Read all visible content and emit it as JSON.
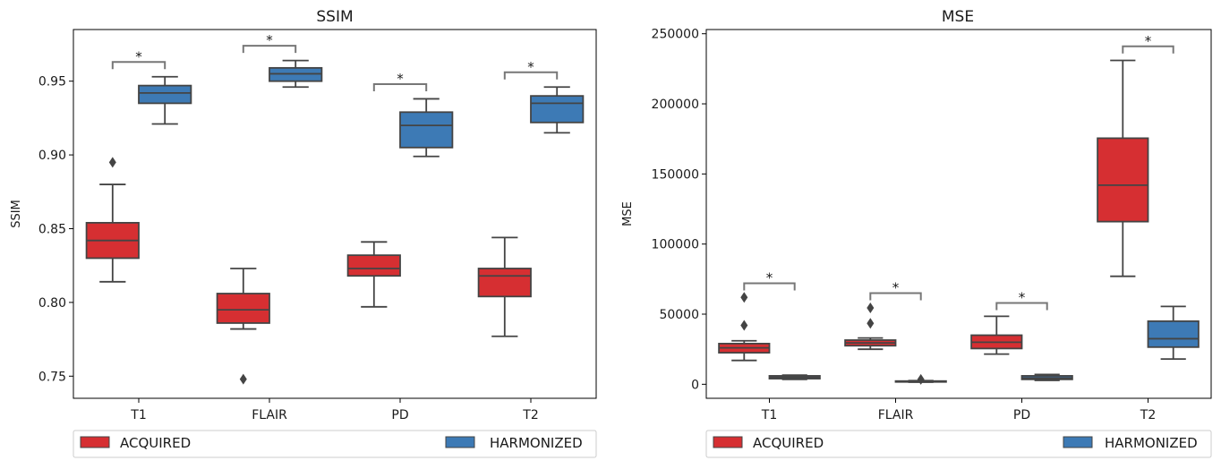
{
  "colors": {
    "acquired": "#d62f32",
    "harmonized": "#3d7ab5",
    "box_line": "#444444",
    "bracket": "#777777"
  },
  "legend": {
    "acquired_label": "ACQUIRED",
    "harmonized_label": "HARMONIZED"
  },
  "chart_data": [
    {
      "type": "box",
      "title": "SSIM",
      "xlabel": "",
      "ylabel": "SSIM",
      "ylim": [
        0.735,
        0.985
      ],
      "yticks": [
        0.75,
        0.8,
        0.85,
        0.9,
        0.95
      ],
      "ytick_labels": [
        "0.75",
        "0.80",
        "0.85",
        "0.90",
        "0.95"
      ],
      "categories": [
        "T1",
        "FLAIR",
        "PD",
        "T2"
      ],
      "series": [
        {
          "name": "ACQUIRED",
          "boxes": [
            {
              "whislo": 0.814,
              "q1": 0.83,
              "med": 0.842,
              "q3": 0.854,
              "whishi": 0.88,
              "fliers": [
                0.895
              ]
            },
            {
              "whislo": 0.782,
              "q1": 0.786,
              "med": 0.795,
              "q3": 0.806,
              "whishi": 0.823,
              "fliers": [
                0.748
              ]
            },
            {
              "whislo": 0.797,
              "q1": 0.818,
              "med": 0.823,
              "q3": 0.832,
              "whishi": 0.841,
              "fliers": []
            },
            {
              "whislo": 0.777,
              "q1": 0.804,
              "med": 0.818,
              "q3": 0.823,
              "whishi": 0.844,
              "fliers": []
            }
          ]
        },
        {
          "name": "HARMONIZED",
          "boxes": [
            {
              "whislo": 0.921,
              "q1": 0.935,
              "med": 0.942,
              "q3": 0.947,
              "whishi": 0.953,
              "fliers": []
            },
            {
              "whislo": 0.946,
              "q1": 0.95,
              "med": 0.955,
              "q3": 0.959,
              "whishi": 0.964,
              "fliers": []
            },
            {
              "whislo": 0.899,
              "q1": 0.905,
              "med": 0.92,
              "q3": 0.929,
              "whishi": 0.938,
              "fliers": []
            },
            {
              "whislo": 0.915,
              "q1": 0.922,
              "med": 0.935,
              "q3": 0.94,
              "whishi": 0.946,
              "fliers": []
            }
          ]
        }
      ],
      "significance": [
        {
          "category": "T1",
          "y": 0.963,
          "label": "*"
        },
        {
          "category": "FLAIR",
          "y": 0.974,
          "label": "*"
        },
        {
          "category": "PD",
          "y": 0.948,
          "label": "*"
        },
        {
          "category": "T2",
          "y": 0.956,
          "label": "*"
        }
      ],
      "legend_position": "below"
    },
    {
      "type": "box",
      "title": "MSE",
      "xlabel": "",
      "ylabel": "MSE",
      "ylim": [
        -10000,
        253000
      ],
      "yticks": [
        0,
        50000,
        100000,
        150000,
        200000,
        250000
      ],
      "ytick_labels": [
        "0",
        "50000",
        "100000",
        "150000",
        "200000",
        "250000"
      ],
      "categories": [
        "T1",
        "FLAIR",
        "PD",
        "T2"
      ],
      "series": [
        {
          "name": "ACQUIRED",
          "boxes": [
            {
              "whislo": 17000,
              "q1": 22500,
              "med": 26000,
              "q3": 29000,
              "whishi": 31000,
              "fliers": [
                42000,
                62000
              ]
            },
            {
              "whislo": 25000,
              "q1": 27500,
              "med": 29500,
              "q3": 31500,
              "whishi": 33000,
              "fliers": [
                43500,
                54500
              ]
            },
            {
              "whislo": 21500,
              "q1": 25500,
              "med": 30000,
              "q3": 35000,
              "whishi": 48500,
              "fliers": []
            },
            {
              "whislo": 77000,
              "q1": 116000,
              "med": 142000,
              "q3": 175500,
              "whishi": 231000,
              "fliers": []
            }
          ]
        },
        {
          "name": "HARMONIZED",
          "boxes": [
            {
              "whislo": 3500,
              "q1": 4000,
              "med": 5000,
              "q3": 6000,
              "whishi": 6500,
              "fliers": []
            },
            {
              "whislo": 1500,
              "q1": 1800,
              "med": 2000,
              "q3": 2300,
              "whishi": 2600,
              "fliers": [
                3500
              ]
            },
            {
              "whislo": 2800,
              "q1": 3500,
              "med": 4500,
              "q3": 6000,
              "whishi": 7000,
              "fliers": []
            },
            {
              "whislo": 18000,
              "q1": 26500,
              "med": 32500,
              "q3": 45000,
              "whishi": 55500,
              "fliers": []
            }
          ]
        }
      ],
      "significance": [
        {
          "category": "T1",
          "y": 72000,
          "label": "*"
        },
        {
          "category": "FLAIR",
          "y": 65000,
          "label": "*"
        },
        {
          "category": "PD",
          "y": 58000,
          "label": "*"
        },
        {
          "category": "T2",
          "y": 241000,
          "label": "*"
        }
      ],
      "legend_position": "below"
    }
  ]
}
